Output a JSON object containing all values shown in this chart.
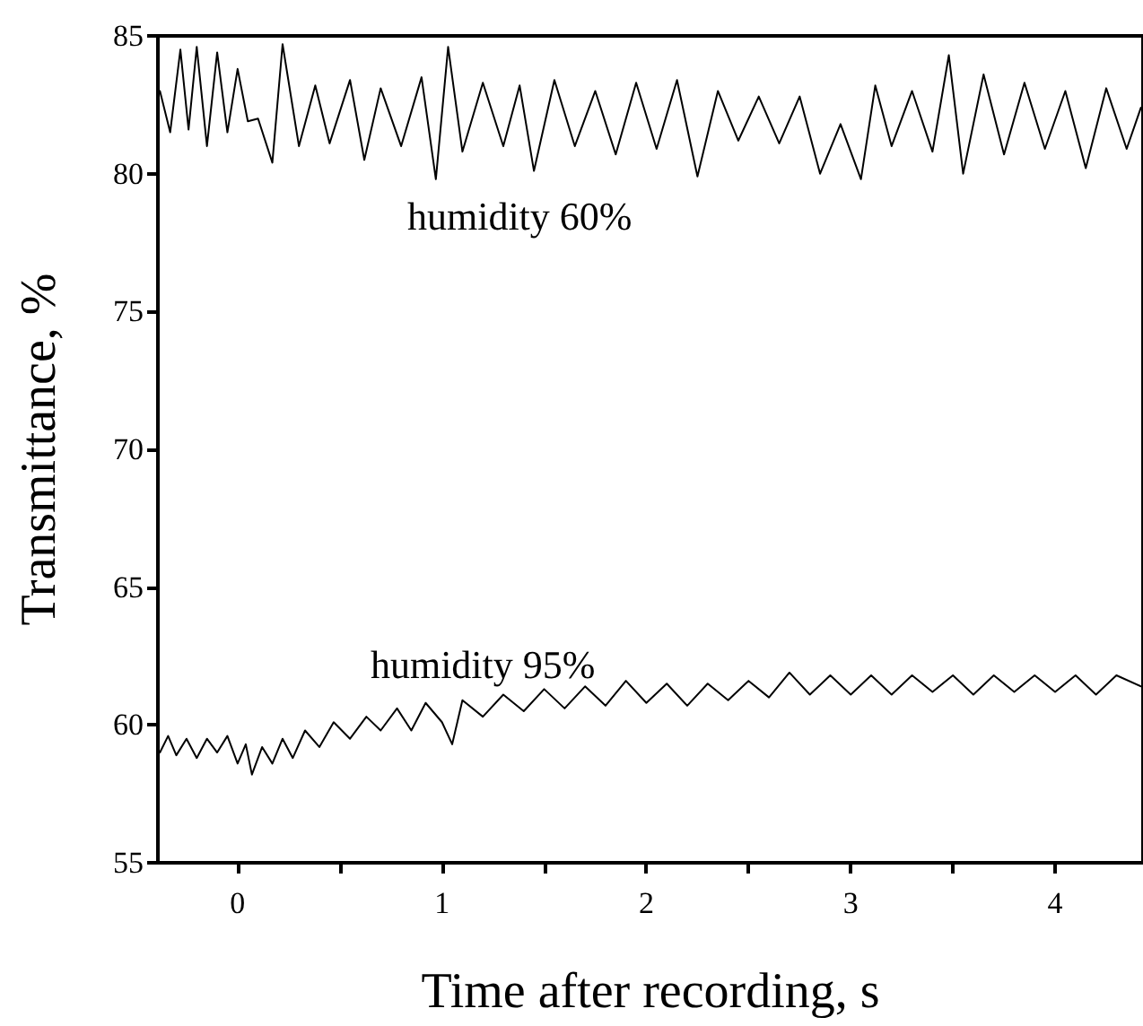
{
  "chart_data": {
    "type": "line",
    "xlabel": "Time after recording, s",
    "ylabel": "Transmittance, %",
    "xlim": [
      -0.39,
      4.43
    ],
    "ylim": [
      55,
      85
    ],
    "xticks": [
      0,
      {
        "value": 0.5,
        "label": null
      },
      1,
      {
        "value": 1.5,
        "label": null
      },
      2,
      {
        "value": 2.5,
        "label": null
      },
      3,
      {
        "value": 3.5,
        "label": null
      },
      4
    ],
    "yticks": [
      55,
      60,
      65,
      70,
      75,
      80,
      85
    ],
    "grid": false,
    "legend": false,
    "marker": "none",
    "line_style": "solid",
    "series": [
      {
        "name": "humidity 60%",
        "color": "#000000",
        "x": [
          -0.38,
          -0.33,
          -0.28,
          -0.24,
          -0.2,
          -0.15,
          -0.1,
          -0.05,
          0.0,
          0.05,
          0.1,
          0.17,
          0.22,
          0.3,
          0.38,
          0.45,
          0.55,
          0.62,
          0.7,
          0.8,
          0.9,
          0.97,
          1.03,
          1.1,
          1.2,
          1.3,
          1.38,
          1.45,
          1.55,
          1.65,
          1.75,
          1.85,
          1.95,
          2.05,
          2.15,
          2.25,
          2.35,
          2.45,
          2.55,
          2.65,
          2.75,
          2.85,
          2.95,
          3.05,
          3.12,
          3.2,
          3.3,
          3.4,
          3.48,
          3.55,
          3.65,
          3.75,
          3.85,
          3.95,
          4.05,
          4.15,
          4.25,
          4.35,
          4.42
        ],
        "values": [
          83.0,
          81.5,
          84.5,
          81.6,
          84.6,
          81.0,
          84.4,
          81.5,
          83.8,
          81.9,
          82.0,
          80.4,
          84.7,
          81.0,
          83.2,
          81.1,
          83.4,
          80.5,
          83.1,
          81.0,
          83.5,
          79.8,
          84.6,
          80.8,
          83.3,
          81.0,
          83.2,
          80.1,
          83.4,
          81.0,
          83.0,
          80.7,
          83.3,
          80.9,
          83.4,
          79.9,
          83.0,
          81.2,
          82.8,
          81.1,
          82.8,
          80.0,
          81.8,
          79.8,
          83.2,
          81.0,
          83.0,
          80.8,
          84.3,
          80.0,
          83.6,
          80.7,
          83.3,
          80.9,
          83.0,
          80.2,
          83.1,
          80.9,
          82.4
        ]
      },
      {
        "name": "humidity 95%",
        "color": "#000000",
        "x": [
          -0.38,
          -0.34,
          -0.3,
          -0.25,
          -0.2,
          -0.15,
          -0.1,
          -0.05,
          0.0,
          0.04,
          0.07,
          0.12,
          0.17,
          0.22,
          0.27,
          0.33,
          0.4,
          0.47,
          0.55,
          0.63,
          0.7,
          0.78,
          0.85,
          0.92,
          1.0,
          1.05,
          1.1,
          1.2,
          1.3,
          1.4,
          1.5,
          1.6,
          1.7,
          1.8,
          1.9,
          2.0,
          2.1,
          2.2,
          2.3,
          2.4,
          2.5,
          2.6,
          2.7,
          2.8,
          2.9,
          3.0,
          3.1,
          3.2,
          3.3,
          3.4,
          3.5,
          3.6,
          3.7,
          3.8,
          3.9,
          4.0,
          4.1,
          4.2,
          4.3,
          4.42
        ],
        "values": [
          59.0,
          59.6,
          58.9,
          59.5,
          58.8,
          59.5,
          59.0,
          59.6,
          58.6,
          59.3,
          58.2,
          59.2,
          58.6,
          59.5,
          58.8,
          59.8,
          59.2,
          60.1,
          59.5,
          60.3,
          59.8,
          60.6,
          59.8,
          60.8,
          60.1,
          59.3,
          60.9,
          60.3,
          61.1,
          60.5,
          61.3,
          60.6,
          61.4,
          60.7,
          61.6,
          60.8,
          61.5,
          60.7,
          61.5,
          60.9,
          61.6,
          61.0,
          61.9,
          61.1,
          61.8,
          61.1,
          61.8,
          61.1,
          61.8,
          61.2,
          61.8,
          61.1,
          61.8,
          61.2,
          61.8,
          61.2,
          61.8,
          61.1,
          61.8,
          61.4
        ]
      }
    ]
  }
}
